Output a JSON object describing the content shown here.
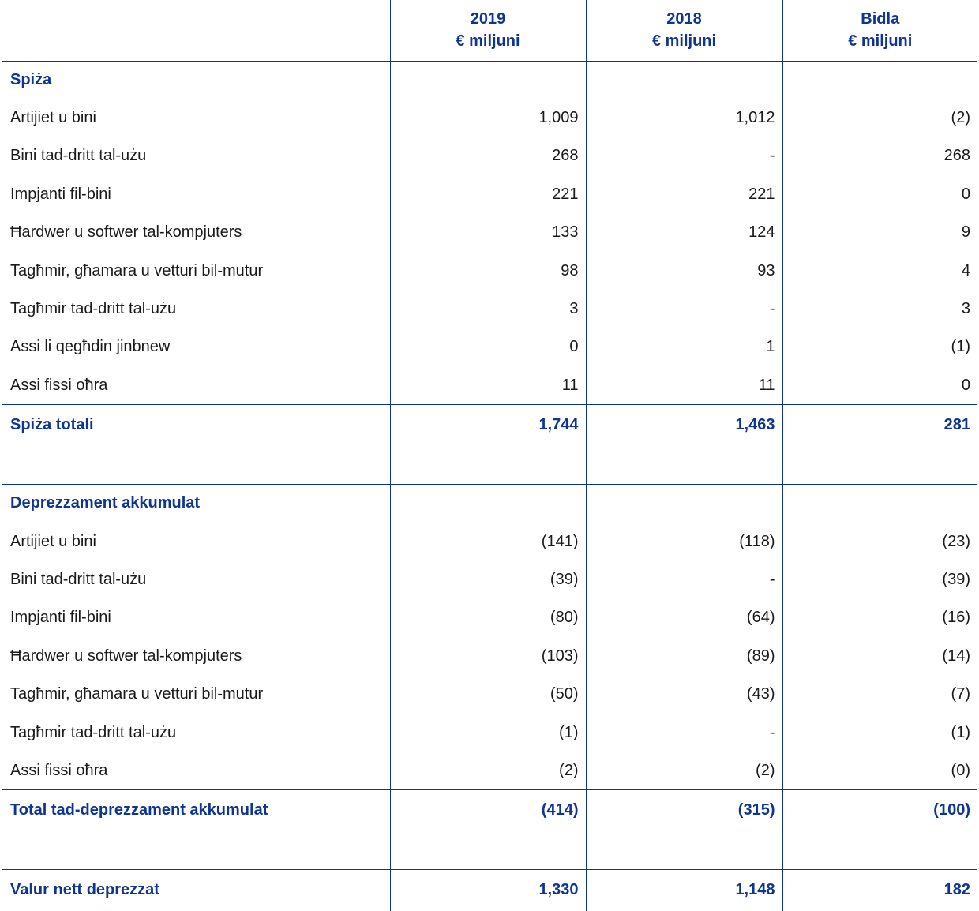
{
  "header": {
    "col_2019_year": "2019",
    "col_2019_unit": "€ miljuni",
    "col_2018_year": "2018",
    "col_2018_unit": "€ miljuni",
    "col_change": "Bidla",
    "col_change_unit": "€ miljuni"
  },
  "cost": {
    "title": "Spiża",
    "rows": [
      {
        "label": "Artijiet u bini",
        "v2019": "1,009",
        "v2018": "1,012",
        "change": "(2)"
      },
      {
        "label": "Bini tad-dritt tal-użu",
        "v2019": "268",
        "v2018": "-",
        "change": "268"
      },
      {
        "label": "Impjanti fil-bini",
        "v2019": "221",
        "v2018": "221",
        "change": "0"
      },
      {
        "label": "Ħardwer u softwer tal-kompjuters",
        "v2019": "133",
        "v2018": "124",
        "change": "9"
      },
      {
        "label": "Tagħmir, għamara u vetturi bil-mutur",
        "v2019": "98",
        "v2018": "93",
        "change": "4"
      },
      {
        "label": "Tagħmir tad-dritt tal-użu",
        "v2019": "3",
        "v2018": "-",
        "change": "3"
      },
      {
        "label": "Assi li qegħdin jinbnew",
        "v2019": "0",
        "v2018": "1",
        "change": "(1)"
      },
      {
        "label": "Assi fissi oħra",
        "v2019": "11",
        "v2018": "11",
        "change": "0"
      }
    ],
    "total": {
      "label": "Spiża totali",
      "v2019": "1,744",
      "v2018": "1,463",
      "change": "281"
    }
  },
  "depreciation": {
    "title": "Deprezzament akkumulat",
    "rows": [
      {
        "label": "Artijiet u bini",
        "v2019": "(141)",
        "v2018": "(118)",
        "change": "(23)"
      },
      {
        "label": "Bini tad-dritt tal-użu",
        "v2019": "(39)",
        "v2018": "-",
        "change": "(39)"
      },
      {
        "label": "Impjanti fil-bini",
        "v2019": "(80)",
        "v2018": "(64)",
        "change": "(16)"
      },
      {
        "label": "Ħardwer u softwer tal-kompjuters",
        "v2019": "(103)",
        "v2018": "(89)",
        "change": "(14)"
      },
      {
        "label": "Tagħmir, għamara u vetturi bil-mutur",
        "v2019": "(50)",
        "v2018": "(43)",
        "change": "(7)"
      },
      {
        "label": "Tagħmir tad-dritt tal-użu",
        "v2019": "(1)",
        "v2018": "-",
        "change": "(1)"
      },
      {
        "label": "Assi fissi oħra",
        "v2019": "(2)",
        "v2018": "(2)",
        "change": "(0)"
      }
    ],
    "total": {
      "label": "Total tad-deprezzament akkumulat",
      "v2019": "(414)",
      "v2018": "(315)",
      "change": "(100)"
    }
  },
  "net": {
    "label": "Valur nett deprezzat",
    "v2019": "1,330",
    "v2018": "1,148",
    "change": "182"
  }
}
